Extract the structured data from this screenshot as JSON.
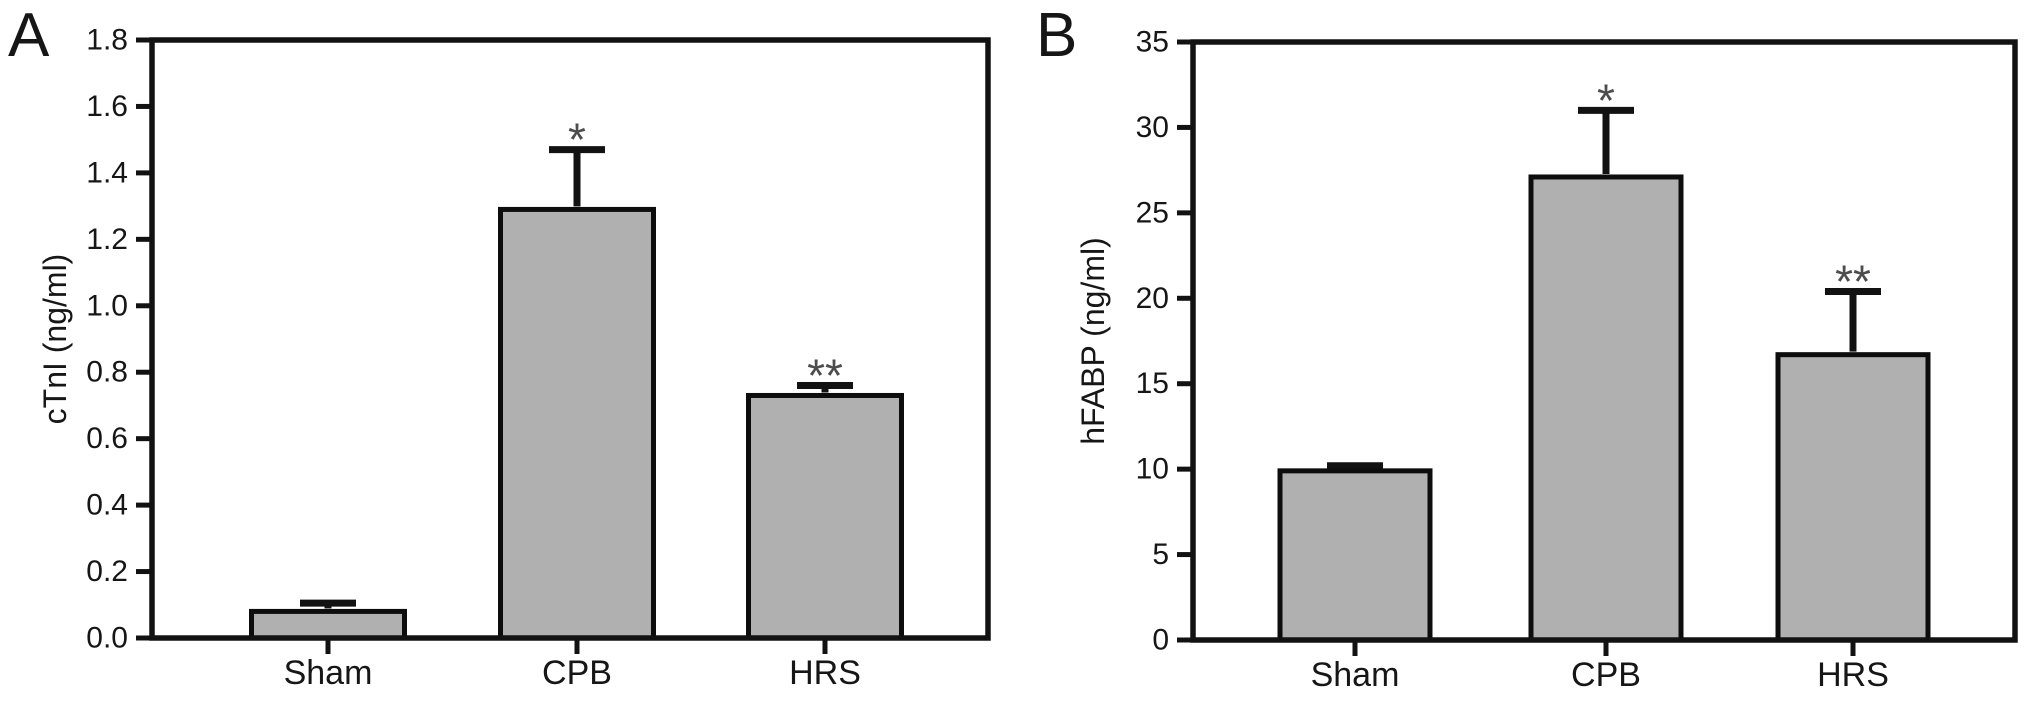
{
  "figure": {
    "background": "#ffffff",
    "text_color": "#161616",
    "axis_color": "#121212",
    "bar_fill": "#b0b0b0",
    "bar_stroke": "#0d0d0d",
    "annotation_color": "#4d4d4d"
  },
  "chart_data": [
    {
      "type": "bar",
      "panel_label": "A",
      "title": "",
      "xlabel": "",
      "ylabel": "cTnI (ng/ml)",
      "categories": [
        "Sham",
        "CPB",
        "HRS"
      ],
      "values": [
        0.08,
        1.29,
        0.73
      ],
      "errors_plus": [
        0.025,
        0.18,
        0.03
      ],
      "significance": [
        "",
        "*",
        "**"
      ],
      "ylim": [
        0,
        1.8
      ],
      "yticks": [
        "0.0",
        "0.2",
        "0.4",
        "0.6",
        "0.8",
        "1.0",
        "1.2",
        "1.4",
        "1.6",
        "1.8"
      ],
      "grid": false,
      "legend": "none"
    },
    {
      "type": "bar",
      "panel_label": "B",
      "title": "",
      "xlabel": "",
      "ylabel": "hFABP (ng/ml)",
      "categories": [
        "Sham",
        "CPB",
        "HRS"
      ],
      "values": [
        9.9,
        27.1,
        16.7
      ],
      "errors_plus": [
        0.3,
        3.9,
        3.7
      ],
      "significance": [
        "",
        "*",
        "**"
      ],
      "ylim": [
        0,
        35
      ],
      "yticks": [
        "0",
        "5",
        "10",
        "15",
        "20",
        "25",
        "30",
        "35"
      ],
      "grid": false,
      "legend": "none"
    }
  ]
}
